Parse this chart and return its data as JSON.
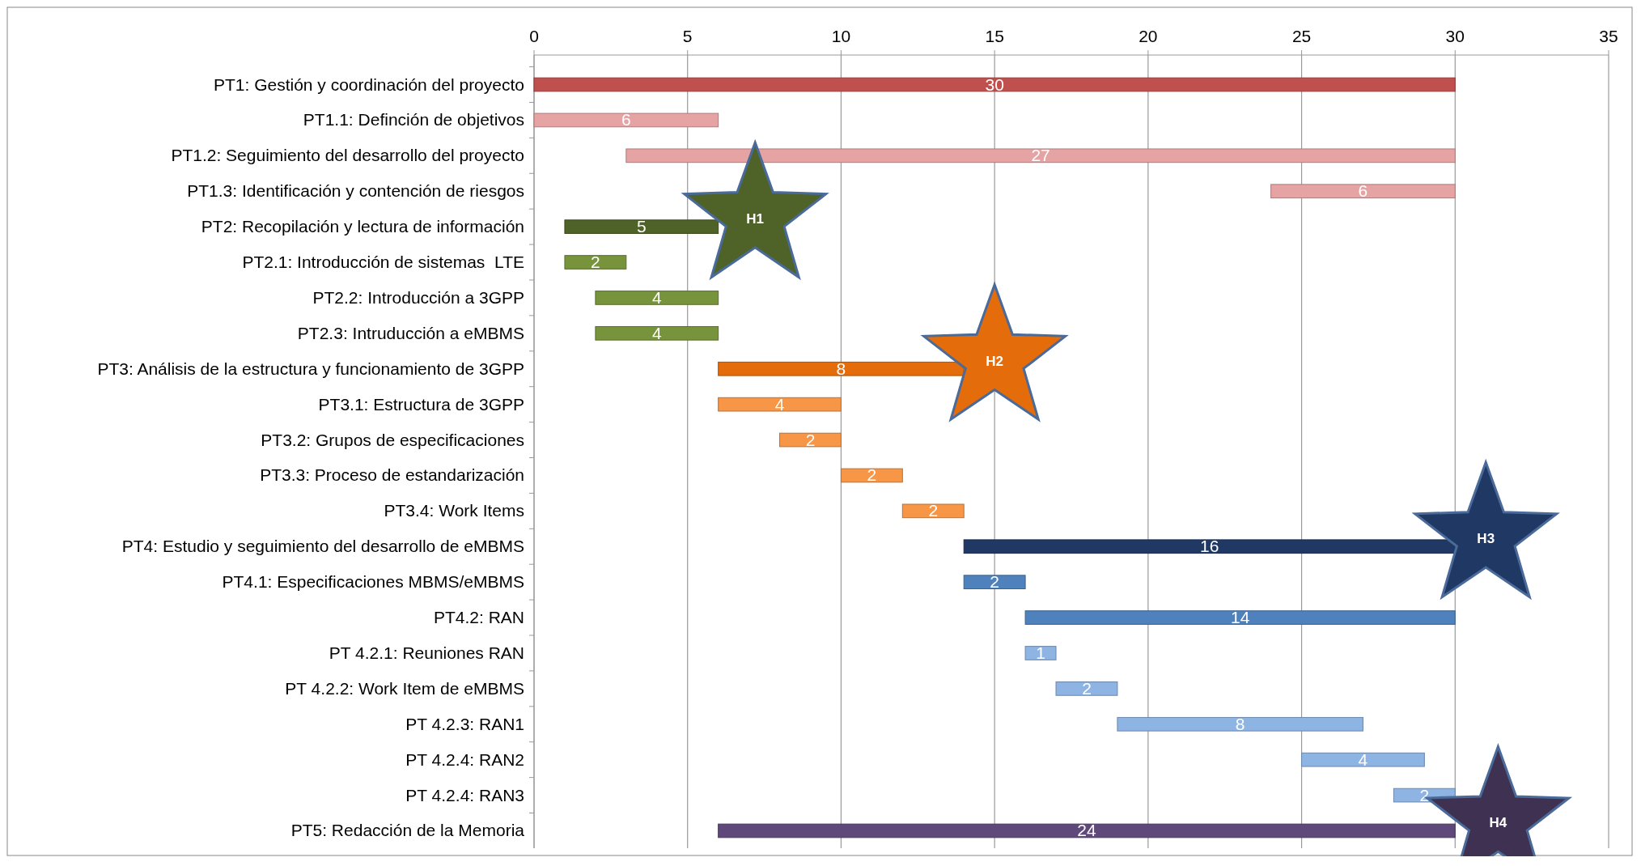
{
  "chart_data": {
    "type": "bar",
    "orientation": "horizontal",
    "categories": [
      "PT1: Gestión y coordinación del proyecto",
      "PT1.1: Definción de objetivos",
      "PT1.2: Seguimiento del desarrollo del proyecto",
      "PT1.3: Identificación y contención de riesgos",
      "PT2: Recopilación y lectura de información",
      "PT2.1: Introducción de sistemas  LTE",
      "PT2.2: Introducción a 3GPP",
      "PT2.3: Intruducción a eMBMS",
      "PT3: Análisis de la estructura y funcionamiento de 3GPP",
      "PT3.1: Estructura de 3GPP",
      "PT3.2: Grupos de especificaciones",
      "PT3.3: Proceso de estandarización",
      "PT3.4: Work Items",
      "PT4: Estudio y seguimiento del desarrollo de eMBMS",
      "PT4.1: Especificaciones MBMS/eMBMS",
      "PT4.2: RAN",
      "PT 4.2.1: Reuniones RAN",
      "PT 4.2.2: Work Item de eMBMS",
      "PT 4.2.3: RAN1",
      "PT 4.2.4: RAN2",
      "PT 4.2.4: RAN3",
      "PT5: Redacción de la Memoria"
    ],
    "series": [
      {
        "base": [
          0,
          0,
          3,
          24,
          1,
          1,
          2,
          2,
          6,
          6,
          8,
          10,
          12,
          14,
          14,
          16,
          16,
          17,
          19,
          25,
          28,
          6
        ],
        "values": [
          30,
          6,
          27,
          6,
          5,
          2,
          4,
          4,
          8,
          4,
          2,
          2,
          2,
          16,
          2,
          14,
          1,
          2,
          8,
          4,
          2,
          24
        ],
        "colors": [
          "#c0504d",
          "#e6a3a3",
          "#e6a3a3",
          "#e6a3a3",
          "#4f6228",
          "#77933c",
          "#77933c",
          "#77933c",
          "#e46c0a",
          "#f79646",
          "#f79646",
          "#f79646",
          "#f79646",
          "#1f3864",
          "#4f81bd",
          "#4f81bd",
          "#8eb4e3",
          "#8eb4e3",
          "#8eb4e3",
          "#8eb4e3",
          "#8eb4e3",
          "#5f497a"
        ]
      },
      {
        "type": "scatter",
        "marker": "star",
        "x": [
          "PT2: Recopilación y lectura de información",
          "PT3: Análisis de la estructura y funcionamiento de 3GPP",
          "PT4: Estudio y seguimiento del desarrollo de eMBMS",
          "PT5: Redacción de la Memoria"
        ],
        "values": [
          7.2,
          15,
          31,
          31.4
        ],
        "colors": [
          "#4f6228",
          "#e46c0a",
          "#1f3864",
          "#3f3151"
        ],
        "value_labels": [
          "H1",
          "H2",
          "H3",
          "H4"
        ]
      }
    ],
    "data_labels": true,
    "xlim": [
      0,
      35
    ],
    "xticks": [
      0,
      5,
      10,
      15,
      20,
      25,
      30,
      35
    ],
    "grid": "x"
  }
}
